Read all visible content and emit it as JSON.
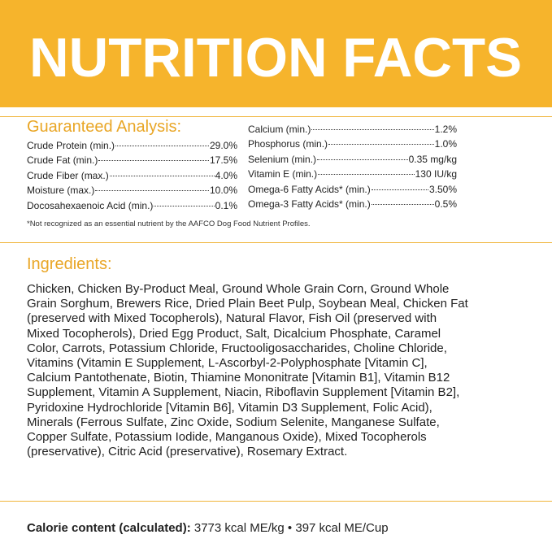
{
  "header": {
    "title": "NUTRITION FACTS"
  },
  "guaranteed_analysis": {
    "heading": "Guaranteed Analysis:",
    "left": [
      {
        "name": "Crude Protein (min.)",
        "value": "29.0%"
      },
      {
        "name": "Crude Fat (min.)",
        "value": "17.5%"
      },
      {
        "name": "Crude Fiber (max.)",
        "value": "4.0%"
      },
      {
        "name": "Moisture (max.)",
        "value": "10.0%"
      },
      {
        "name": "Docosahexaenoic Acid (min.)",
        "value": "0.1%"
      }
    ],
    "right": [
      {
        "name": "Calcium (min.)",
        "value": "1.2%"
      },
      {
        "name": "Phosphorus (min.)",
        "value": "1.0%"
      },
      {
        "name": "Selenium (min.)",
        "value": "0.35 mg/kg"
      },
      {
        "name": "Vitamin E (min.)",
        "value": "130 IU/kg"
      },
      {
        "name": "Omega-6 Fatty Acids* (min.)",
        "value": "3.50%"
      },
      {
        "name": "Omega-3 Fatty Acids* (min.)",
        "value": "0.5%"
      }
    ],
    "footnote": "*Not recognized as an essential nutrient by the AAFCO Dog Food Nutrient Profiles."
  },
  "ingredients": {
    "heading": "Ingredients:",
    "text": "Chicken, Chicken By-Product Meal, Ground Whole Grain Corn, Ground Whole Grain Sorghum, Brewers Rice, Dried Plain Beet Pulp, Soybean Meal, Chicken Fat (preserved with Mixed Tocopherols), Natural Flavor, Fish Oil (preserved with Mixed Tocopherols), Dried Egg Product, Salt, Dicalcium Phosphate, Caramel Color, Carrots, Potassium Chloride, Fructooligosaccharides, Choline Chloride, Vitamins (Vitamin E Supplement, L-Ascorbyl-2-Polyphosphate [Vitamin C], Calcium Pantothenate, Biotin, Thiamine Mononitrate [Vitamin B1], Vitamin B12 Supplement, Vitamin A Supplement, Niacin, Riboflavin Supplement [Vitamin B2], Pyridoxine Hydrochloride [Vitamin B6], Vitamin D3 Supplement, Folic Acid), Minerals (Ferrous Sulfate, Zinc Oxide, Sodium Selenite, Manganese Sulfate, Copper Sulfate, Potassium Iodide, Manganous Oxide), Mixed Tocopherols (preservative), Citric Acid (preservative), Rosemary Extract."
  },
  "calorie": {
    "label": "Calorie content (calculated):",
    "value": "3773 kcal ME/kg • 397 kcal ME/Cup"
  }
}
